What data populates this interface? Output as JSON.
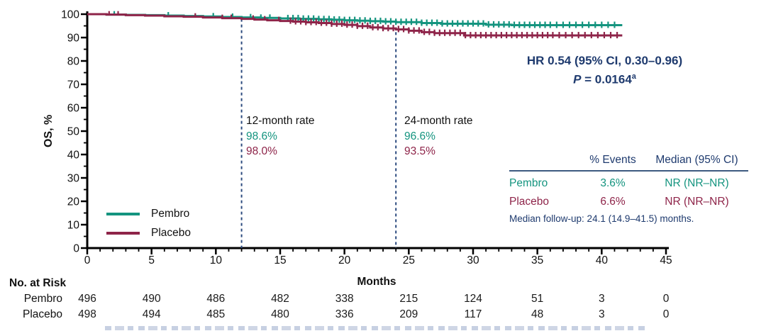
{
  "colors": {
    "pembro": "#14947F",
    "placebo": "#8E2449",
    "navy": "#1E3A6E",
    "axis": "#000000",
    "table_rule": "#3D5A80"
  },
  "chart_data": {
    "type": "line",
    "subtype": "kaplan-meier",
    "title": "",
    "xlabel": "Months",
    "ylabel": "OS, %",
    "xlim": [
      0,
      45
    ],
    "ylim": [
      0,
      100
    ],
    "xticks": [
      0,
      5,
      10,
      15,
      20,
      25,
      30,
      35,
      40,
      45
    ],
    "yticks": [
      0,
      10,
      20,
      30,
      40,
      50,
      60,
      70,
      80,
      90,
      100
    ],
    "x_minor_step": 1,
    "y_minor_step": 5,
    "grid": false,
    "legend_position": "lower-left",
    "ref_color": "#2B4A7E",
    "reference_lines": [
      {
        "x": 12,
        "y_top": 98.0
      },
      {
        "x": 24,
        "y_top": 92.3
      }
    ],
    "stats": {
      "hr": "HR 0.54 (95% CI, 0.30–0.96)",
      "p_label": "P",
      "p_eq": " = 0.0164",
      "p_sup": "a"
    },
    "annotations": {
      "rate12": {
        "title": "12-month rate",
        "pembro": "98.6%",
        "placebo": "98.0%"
      },
      "rate24": {
        "title": "24-month rate",
        "pembro": "96.6%",
        "placebo": "93.5%"
      }
    },
    "series": [
      {
        "name": "Pembro",
        "color": "#14947F",
        "points": [
          [
            0,
            100
          ],
          [
            1.5,
            99.8
          ],
          [
            3,
            99.7
          ],
          [
            4.5,
            99.6
          ],
          [
            6,
            99.4
          ],
          [
            7.5,
            99.2
          ],
          [
            9,
            99.0
          ],
          [
            10.5,
            98.8
          ],
          [
            12,
            98.6
          ],
          [
            13.5,
            98.4
          ],
          [
            15,
            98.2
          ],
          [
            16.5,
            98.0
          ],
          [
            18,
            97.8
          ],
          [
            19,
            97.6
          ],
          [
            20,
            97.4
          ],
          [
            21,
            97.2
          ],
          [
            22,
            97.0
          ],
          [
            23,
            96.8
          ],
          [
            24,
            96.6
          ],
          [
            26,
            96.2
          ],
          [
            27.5,
            95.9
          ],
          [
            31,
            95.5
          ],
          [
            33,
            95.3
          ],
          [
            41.6,
            95.3
          ]
        ],
        "censor": [
          2.1,
          6.3,
          9.8,
          11.3,
          12.7,
          13.5,
          14.2,
          15.6,
          16.0,
          16.4,
          16.8,
          17.2,
          17.6,
          18.0,
          18.4,
          18.8,
          19.2,
          19.6,
          20.0,
          20.4,
          20.8,
          21.2,
          21.6,
          22.0,
          22.4,
          22.8,
          23.2,
          23.6,
          24.0,
          24.4,
          24.8,
          25.2,
          25.6,
          26.0,
          26.4,
          26.8,
          27.2,
          27.6,
          28.0,
          28.4,
          28.8,
          29.2,
          29.6,
          30.0,
          30.4,
          30.8,
          31.2,
          31.6,
          32.0,
          32.4,
          32.8,
          33.2,
          33.6,
          34.0,
          34.4,
          34.8,
          35.2,
          35.6,
          36.0,
          36.5,
          37.0,
          37.5,
          38.0,
          38.5,
          39.0,
          39.5,
          40.0,
          40.5,
          41.0
        ]
      },
      {
        "name": "Placebo",
        "color": "#8E2449",
        "points": [
          [
            0,
            100
          ],
          [
            1.5,
            99.8
          ],
          [
            3,
            99.6
          ],
          [
            4.5,
            99.4
          ],
          [
            6,
            99.1
          ],
          [
            7.5,
            98.9
          ],
          [
            9,
            98.6
          ],
          [
            10.5,
            98.3
          ],
          [
            12,
            98.0
          ],
          [
            13,
            97.7
          ],
          [
            14,
            97.4
          ],
          [
            15,
            97.1
          ],
          [
            16,
            96.8
          ],
          [
            17,
            96.5
          ],
          [
            18,
            96.2
          ],
          [
            19,
            95.8
          ],
          [
            20,
            95.4
          ],
          [
            21,
            94.9
          ],
          [
            22,
            94.3
          ],
          [
            23,
            93.9
          ],
          [
            24,
            93.5
          ],
          [
            25,
            92.9
          ],
          [
            26,
            92.3
          ],
          [
            27,
            91.9
          ],
          [
            29.3,
            90.9
          ],
          [
            41.6,
            90.9
          ]
        ],
        "censor": [
          1.7,
          2.4,
          8.4,
          10.5,
          11.2,
          12.9,
          13.8,
          14.9,
          15.8,
          16.2,
          16.6,
          17.0,
          17.4,
          17.8,
          18.2,
          18.6,
          19.0,
          19.4,
          19.8,
          20.2,
          20.6,
          21.0,
          21.4,
          21.8,
          22.2,
          22.6,
          23.0,
          23.4,
          23.8,
          24.2,
          24.6,
          25.0,
          25.4,
          25.8,
          26.2,
          26.6,
          27.0,
          27.4,
          27.8,
          28.2,
          28.6,
          29.0,
          29.4,
          29.8,
          30.2,
          30.6,
          31.0,
          31.4,
          31.8,
          32.2,
          32.6,
          33.0,
          33.4,
          33.8,
          34.2,
          34.6,
          35.0,
          35.4,
          35.8,
          36.2,
          36.7,
          37.2,
          37.7,
          38.2,
          38.7,
          39.2,
          39.7,
          40.2,
          40.7,
          41.2
        ]
      }
    ]
  },
  "summary_table": {
    "col_headers": [
      "% Events",
      "Median (95% CI)"
    ],
    "rows": [
      {
        "name": "Pembro",
        "events": "3.6%",
        "median": "NR (NR–NR)"
      },
      {
        "name": "Placebo",
        "events": "6.6%",
        "median": "NR (NR–NR)"
      }
    ],
    "note": "Median follow-up: 24.1 (14.9–41.5) months."
  },
  "risk_table": {
    "title": "No. at Risk",
    "rows": [
      {
        "label": "Pembro",
        "counts": [
          "496",
          "490",
          "486",
          "482",
          "338",
          "215",
          "124",
          "51",
          "3",
          "0"
        ]
      },
      {
        "label": "Placebo",
        "counts": [
          "498",
          "494",
          "485",
          "480",
          "336",
          "209",
          "117",
          "48",
          "3",
          "0"
        ]
      }
    ]
  }
}
